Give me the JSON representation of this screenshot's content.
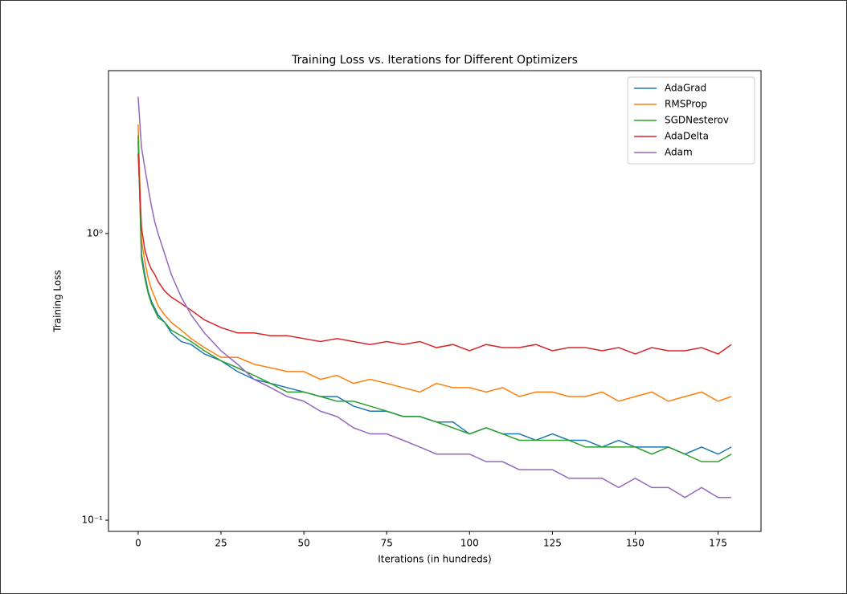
{
  "chart_data": {
    "type": "line",
    "title": "Training Loss vs. Iterations for Different Optimizers",
    "xlabel": "Iterations (in hundreds)",
    "ylabel": "Training Loss",
    "x": [
      0,
      1,
      2,
      3,
      4,
      5,
      6,
      8,
      10,
      13,
      16,
      20,
      25,
      30,
      35,
      40,
      45,
      50,
      55,
      60,
      65,
      70,
      75,
      80,
      85,
      90,
      95,
      100,
      105,
      110,
      115,
      120,
      125,
      130,
      135,
      140,
      145,
      150,
      155,
      160,
      165,
      170,
      175,
      179
    ],
    "series": [
      {
        "name": "AdaGrad",
        "color": "#1f77b4",
        "values": [
          2.1,
          0.85,
          0.72,
          0.63,
          0.58,
          0.55,
          0.52,
          0.49,
          0.45,
          0.42,
          0.41,
          0.38,
          0.36,
          0.33,
          0.31,
          0.3,
          0.29,
          0.28,
          0.27,
          0.27,
          0.25,
          0.24,
          0.24,
          0.23,
          0.23,
          0.22,
          0.22,
          0.2,
          0.21,
          0.2,
          0.2,
          0.19,
          0.2,
          0.19,
          0.19,
          0.18,
          0.19,
          0.18,
          0.18,
          0.18,
          0.17,
          0.18,
          0.17,
          0.18
        ]
      },
      {
        "name": "RMSProp",
        "color": "#ff7f0e",
        "values": [
          2.4,
          0.95,
          0.8,
          0.7,
          0.64,
          0.6,
          0.56,
          0.52,
          0.49,
          0.46,
          0.43,
          0.4,
          0.37,
          0.37,
          0.35,
          0.34,
          0.33,
          0.33,
          0.31,
          0.32,
          0.3,
          0.31,
          0.3,
          0.29,
          0.28,
          0.3,
          0.29,
          0.29,
          0.28,
          0.29,
          0.27,
          0.28,
          0.28,
          0.27,
          0.27,
          0.28,
          0.26,
          0.27,
          0.28,
          0.26,
          0.27,
          0.28,
          0.26,
          0.27
        ]
      },
      {
        "name": "SGDNesterov",
        "color": "#2ca02c",
        "values": [
          2.2,
          0.82,
          0.7,
          0.62,
          0.57,
          0.54,
          0.51,
          0.49,
          0.46,
          0.44,
          0.42,
          0.39,
          0.36,
          0.34,
          0.32,
          0.3,
          0.28,
          0.28,
          0.27,
          0.26,
          0.26,
          0.25,
          0.24,
          0.23,
          0.23,
          0.22,
          0.21,
          0.2,
          0.21,
          0.2,
          0.19,
          0.19,
          0.19,
          0.19,
          0.18,
          0.18,
          0.18,
          0.18,
          0.17,
          0.18,
          0.17,
          0.16,
          0.16,
          0.17
        ]
      },
      {
        "name": "AdaDelta",
        "color": "#d62728",
        "values": [
          1.9,
          1.05,
          0.88,
          0.8,
          0.75,
          0.72,
          0.68,
          0.63,
          0.6,
          0.57,
          0.54,
          0.5,
          0.47,
          0.45,
          0.45,
          0.44,
          0.44,
          0.43,
          0.42,
          0.43,
          0.42,
          0.41,
          0.42,
          0.41,
          0.42,
          0.4,
          0.41,
          0.39,
          0.41,
          0.4,
          0.4,
          0.41,
          0.39,
          0.4,
          0.4,
          0.39,
          0.4,
          0.38,
          0.4,
          0.39,
          0.39,
          0.4,
          0.38,
          0.41
        ]
      },
      {
        "name": "Adam",
        "color": "#9467bd",
        "values": [
          3.0,
          2.0,
          1.7,
          1.45,
          1.25,
          1.1,
          1.0,
          0.85,
          0.72,
          0.6,
          0.52,
          0.45,
          0.39,
          0.35,
          0.31,
          0.29,
          0.27,
          0.26,
          0.24,
          0.23,
          0.21,
          0.2,
          0.2,
          0.19,
          0.18,
          0.17,
          0.17,
          0.17,
          0.16,
          0.16,
          0.15,
          0.15,
          0.15,
          0.14,
          0.14,
          0.14,
          0.13,
          0.14,
          0.13,
          0.13,
          0.12,
          0.13,
          0.12,
          0.12
        ]
      }
    ],
    "xlim": [
      -8.95,
      187.95
    ],
    "xticks": [
      0,
      25,
      50,
      75,
      100,
      125,
      150,
      175
    ],
    "ylim": [
      0.0914,
      3.7
    ],
    "yticks": [
      {
        "value": 0.1,
        "label": "10⁻¹"
      },
      {
        "value": 1,
        "label": "10⁰"
      }
    ],
    "log_y": true,
    "legend": "upper right"
  }
}
